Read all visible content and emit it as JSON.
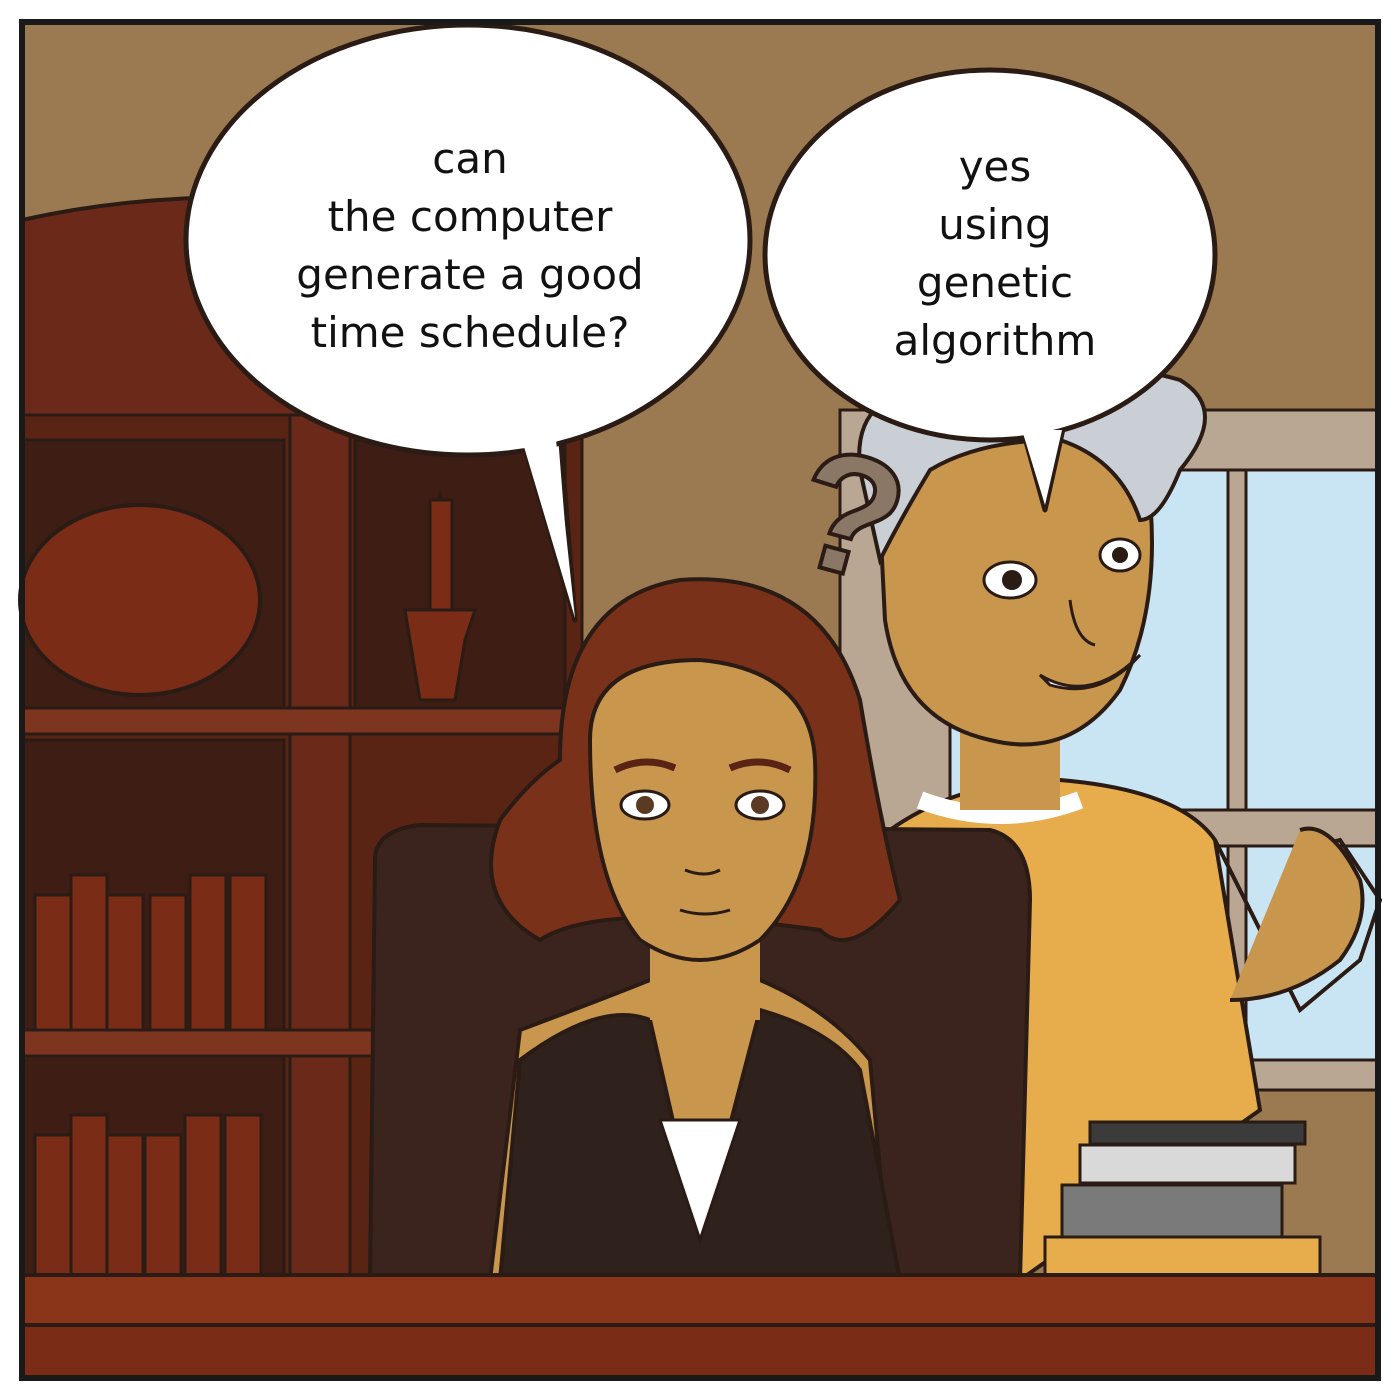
{
  "bubbles": [
    {
      "speaker": "seated-woman",
      "lines": [
        "can",
        "the computer",
        "generate a good",
        "time schedule?"
      ]
    },
    {
      "speaker": "standing-woman",
      "lines": [
        "yes",
        "using",
        "genetic",
        "algorithm"
      ]
    }
  ],
  "thought_symbol": "?",
  "colors": {
    "wall": "#9b7a52",
    "bookcase": "#6b2a19",
    "desk": "#7a2c17",
    "window": "#c9e4f3",
    "skin": "#c9964e",
    "shirt": "#e7ad4d",
    "hair_brown": "#7a3119",
    "hair_gray": "#c9cfd4",
    "chair": "#3b241d"
  }
}
